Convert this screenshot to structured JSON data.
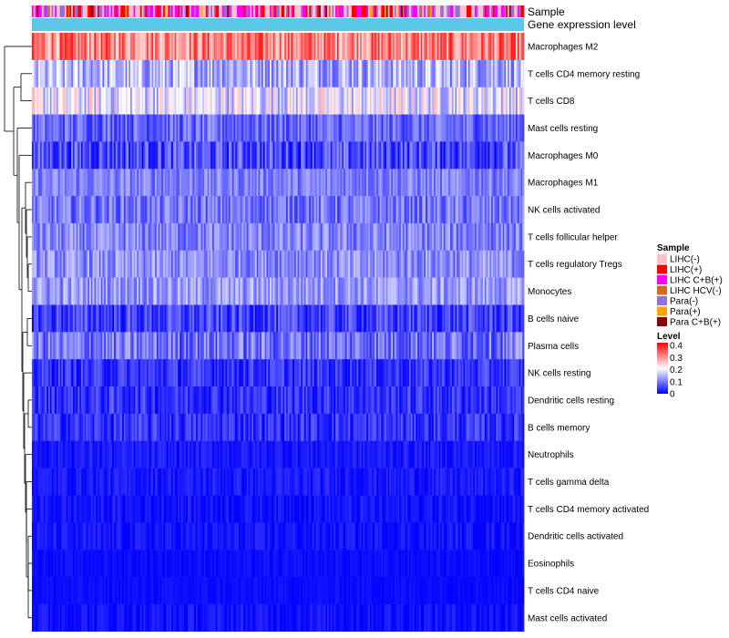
{
  "chart_data": {
    "type": "heatmap",
    "title": "",
    "annotation_tracks": [
      "Sample",
      "Gene expression level"
    ],
    "rows": [
      {
        "label": "Macrophages M2",
        "mean": 0.3,
        "spread": 0.08
      },
      {
        "label": "T cells CD4 memory resting",
        "mean": 0.14,
        "spread": 0.07
      },
      {
        "label": "T cells CD8",
        "mean": 0.18,
        "spread": 0.08
      },
      {
        "label": "Mast cells resting",
        "mean": 0.08,
        "spread": 0.05
      },
      {
        "label": "Macrophages M0",
        "mean": 0.06,
        "spread": 0.06
      },
      {
        "label": "Macrophages M1",
        "mean": 0.1,
        "spread": 0.04
      },
      {
        "label": "NK cells activated",
        "mean": 0.09,
        "spread": 0.05
      },
      {
        "label": "T cells follicular helper",
        "mean": 0.1,
        "spread": 0.05
      },
      {
        "label": "T cells regulatory  Tregs",
        "mean": 0.11,
        "spread": 0.05
      },
      {
        "label": "Monocytes",
        "mean": 0.12,
        "spread": 0.05
      },
      {
        "label": "B cells naive",
        "mean": 0.05,
        "spread": 0.05
      },
      {
        "label": "Plasma cells",
        "mean": 0.09,
        "spread": 0.06
      },
      {
        "label": "NK cells resting",
        "mean": 0.04,
        "spread": 0.04
      },
      {
        "label": "Dendritic cells resting",
        "mean": 0.04,
        "spread": 0.04
      },
      {
        "label": "B cells memory",
        "mean": 0.04,
        "spread": 0.04
      },
      {
        "label": "Neutrophils",
        "mean": 0.02,
        "spread": 0.02
      },
      {
        "label": "T cells gamma delta",
        "mean": 0.02,
        "spread": 0.02
      },
      {
        "label": "T cells CD4 memory activated",
        "mean": 0.015,
        "spread": 0.02
      },
      {
        "label": "Dendritic cells activated",
        "mean": 0.015,
        "spread": 0.02
      },
      {
        "label": "Eosinophils",
        "mean": 0.01,
        "spread": 0.01
      },
      {
        "label": "T cells CD4 naive",
        "mean": 0.01,
        "spread": 0.01
      },
      {
        "label": "Mast cells activated",
        "mean": 0.015,
        "spread": 0.02
      }
    ],
    "legend_sample": {
      "title": "Sample",
      "entries": [
        {
          "label": "LIHC(-)",
          "color": "#ffc0cb"
        },
        {
          "label": "LIHC(+)",
          "color": "#ff0000"
        },
        {
          "label": "LIHC C+B(+)",
          "color": "#ff00ff"
        },
        {
          "label": "LIHC HCV(-)",
          "color": "#d2691e"
        },
        {
          "label": "Para(-)",
          "color": "#9370db"
        },
        {
          "label": "Para(+)",
          "color": "#ffa500"
        },
        {
          "label": "Para C+B(+)",
          "color": "#8b0000"
        }
      ]
    },
    "legend_level": {
      "title": "Level",
      "ticks": [
        "0.4",
        "0.3",
        "0.2",
        "0.1",
        "0"
      ],
      "range": [
        0,
        0.4
      ],
      "colors": {
        "low": "#0000ff",
        "mid": "#ffffff",
        "high": "#ff0000"
      }
    },
    "gene_expression_color": "#5bc8e8"
  }
}
